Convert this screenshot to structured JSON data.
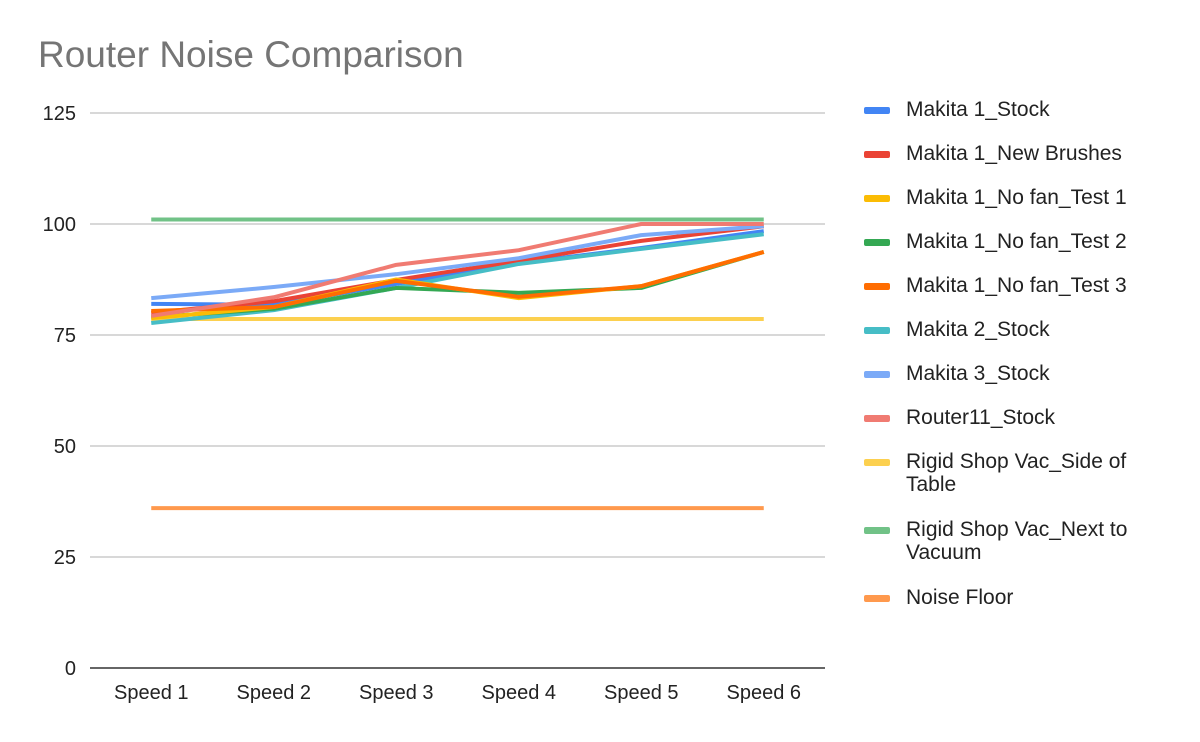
{
  "chart_data": {
    "type": "line",
    "title": "Router Noise Comparison",
    "xlabel": "",
    "ylabel": "",
    "categories": [
      "Speed 1",
      "Speed 2",
      "Speed 3",
      "Speed 4",
      "Speed 5",
      "Speed 6"
    ],
    "ylim": [
      0,
      125
    ],
    "yticks": [
      "0",
      "25",
      "50",
      "75",
      "100",
      "125"
    ],
    "grid": true,
    "legend_position": "right",
    "series": [
      {
        "name": "Makita 1_Stock",
        "color": "#4285f4",
        "values": [
          82,
          81.8,
          86.5,
          91.2,
          94.6,
          98.4
        ]
      },
      {
        "name": "Makita 1_New Brushes",
        "color": "#ea4335",
        "values": [
          80,
          82.6,
          87.4,
          91.7,
          96.2,
          99.5
        ]
      },
      {
        "name": "Makita 1_No fan_Test 1",
        "color": "#fbbc04",
        "values": [
          78.8,
          81.3,
          87.5,
          83.3,
          86,
          93.7
        ]
      },
      {
        "name": "Makita 1_No fan_Test 2",
        "color": "#34a853",
        "values": [
          79,
          80.9,
          85.6,
          84.5,
          85.6,
          93.7
        ]
      },
      {
        "name": "Makita 1_No fan_Test 3",
        "color": "#ff6d01",
        "values": [
          80.4,
          81.3,
          87.2,
          83.6,
          86,
          93.7
        ]
      },
      {
        "name": "Makita 2_Stock",
        "color": "#46bdc6",
        "values": [
          77.7,
          80.6,
          85.6,
          91,
          94.4,
          97.7
        ]
      },
      {
        "name": "Makita 3_Stock",
        "color": "#7baaf7",
        "values": [
          83.3,
          85.8,
          88.7,
          92.3,
          97.5,
          99.5
        ]
      },
      {
        "name": "Router11_Stock",
        "color": "#f07b72",
        "values": [
          79.3,
          83.5,
          90.8,
          94.1,
          100,
          100
        ]
      },
      {
        "name": "Rigid Shop Vac_Side of Table",
        "color": "#fcd04f",
        "values": [
          78.6,
          78.6,
          78.6,
          78.6,
          78.6,
          78.6
        ]
      },
      {
        "name": "Rigid Shop Vac_Next to Vacuum",
        "color": "#71c287",
        "values": [
          101,
          101,
          101,
          101,
          101,
          101
        ]
      },
      {
        "name": "Noise Floor",
        "color": "#ff994d",
        "values": [
          36,
          36,
          36,
          36,
          36,
          36
        ]
      }
    ]
  }
}
